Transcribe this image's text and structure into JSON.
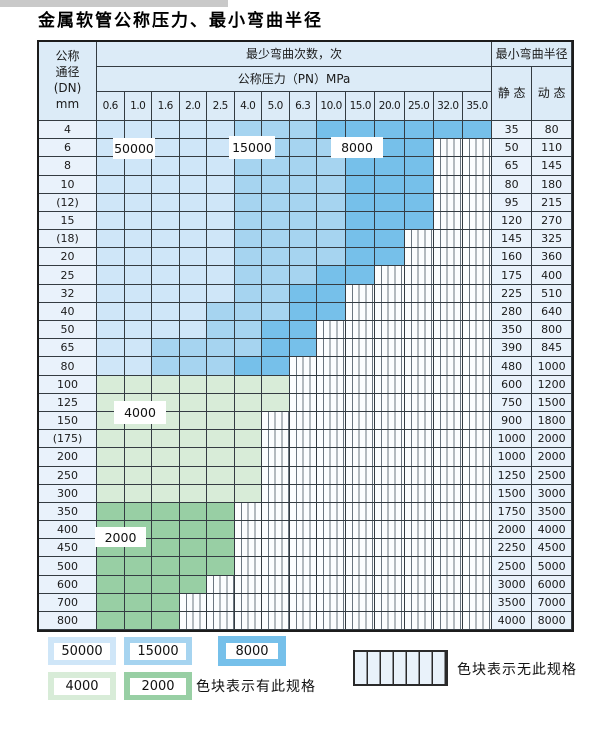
{
  "title": "金属软管公称压力、最小弯曲半径",
  "colors": {
    "cycles_50000": "#cfe6f8",
    "cycles_15000": "#a6d4f0",
    "cycles_8000": "#76c0ea",
    "cycles_4000": "#d8ecd8",
    "cycles_2000": "#98cfa4",
    "header_bg": "#dcebf7",
    "side_col_bg": "#e9f2fb"
  },
  "table": {
    "header": {
      "dn_lines": [
        "公称",
        "通径",
        "(DN)",
        "mm"
      ],
      "bend_cycles": "最少弯曲次数，次",
      "pressure": "公称压力（PN）MPa",
      "bend_radius": "最小弯曲半径",
      "static_label": "静 态",
      "dynamic_label": "动 态",
      "pressure_cols": [
        "0.6",
        "1.0",
        "1.6",
        "2.0",
        "2.5",
        "4.0",
        "5.0",
        "6.3",
        "10.0",
        "15.0",
        "20.0",
        "25.0",
        "32.0",
        "35.0"
      ]
    },
    "zone_legend_codes": {
      "L": "50000",
      "M": "15000",
      "D": "8000",
      "G": "4000",
      "H": "2000",
      "E": "none"
    },
    "zone_labels": [
      "50000",
      "15000",
      "8000",
      "4000",
      "2000"
    ],
    "rows": [
      {
        "dn": "4",
        "zones": [
          "L",
          "L",
          "L",
          "L",
          "L",
          "M",
          "M",
          "M",
          "D",
          "D",
          "D",
          "D",
          "D",
          "D"
        ],
        "static": "35",
        "dynamic": "80"
      },
      {
        "dn": "6",
        "zones": [
          "L",
          "L",
          "L",
          "L",
          "L",
          "M",
          "M",
          "M",
          "M",
          "D",
          "D",
          "D",
          "E",
          "E"
        ],
        "static": "50",
        "dynamic": "110"
      },
      {
        "dn": "8",
        "zones": [
          "L",
          "L",
          "L",
          "L",
          "L",
          "M",
          "M",
          "M",
          "M",
          "D",
          "D",
          "D",
          "E",
          "E"
        ],
        "static": "65",
        "dynamic": "145"
      },
      {
        "dn": "10",
        "zones": [
          "L",
          "L",
          "L",
          "L",
          "L",
          "M",
          "M",
          "M",
          "M",
          "D",
          "D",
          "D",
          "E",
          "E"
        ],
        "static": "80",
        "dynamic": "180"
      },
      {
        "dn": "(12)",
        "zones": [
          "L",
          "L",
          "L",
          "L",
          "L",
          "M",
          "M",
          "M",
          "M",
          "D",
          "D",
          "D",
          "E",
          "E"
        ],
        "static": "95",
        "dynamic": "215"
      },
      {
        "dn": "15",
        "zones": [
          "L",
          "L",
          "L",
          "L",
          "L",
          "M",
          "M",
          "M",
          "M",
          "D",
          "D",
          "D",
          "E",
          "E"
        ],
        "static": "120",
        "dynamic": "270"
      },
      {
        "dn": "(18)",
        "zones": [
          "L",
          "L",
          "L",
          "L",
          "L",
          "M",
          "M",
          "M",
          "M",
          "D",
          "D",
          "E",
          "E",
          "E"
        ],
        "static": "145",
        "dynamic": "325"
      },
      {
        "dn": "20",
        "zones": [
          "L",
          "L",
          "L",
          "L",
          "L",
          "M",
          "M",
          "M",
          "M",
          "D",
          "D",
          "E",
          "E",
          "E"
        ],
        "static": "160",
        "dynamic": "360"
      },
      {
        "dn": "25",
        "zones": [
          "L",
          "L",
          "L",
          "L",
          "L",
          "M",
          "M",
          "M",
          "D",
          "D",
          "E",
          "E",
          "E",
          "E"
        ],
        "static": "175",
        "dynamic": "400"
      },
      {
        "dn": "32",
        "zones": [
          "L",
          "L",
          "L",
          "L",
          "L",
          "M",
          "M",
          "D",
          "D",
          "E",
          "E",
          "E",
          "E",
          "E"
        ],
        "static": "225",
        "dynamic": "510"
      },
      {
        "dn": "40",
        "zones": [
          "L",
          "L",
          "L",
          "L",
          "M",
          "M",
          "M",
          "D",
          "D",
          "E",
          "E",
          "E",
          "E",
          "E"
        ],
        "static": "280",
        "dynamic": "640"
      },
      {
        "dn": "50",
        "zones": [
          "L",
          "L",
          "L",
          "L",
          "M",
          "M",
          "D",
          "D",
          "E",
          "E",
          "E",
          "E",
          "E",
          "E"
        ],
        "static": "350",
        "dynamic": "800"
      },
      {
        "dn": "65",
        "zones": [
          "L",
          "L",
          "M",
          "M",
          "M",
          "M",
          "D",
          "D",
          "E",
          "E",
          "E",
          "E",
          "E",
          "E"
        ],
        "static": "390",
        "dynamic": "845"
      },
      {
        "dn": "80",
        "zones": [
          "L",
          "L",
          "M",
          "M",
          "M",
          "D",
          "D",
          "E",
          "E",
          "E",
          "E",
          "E",
          "E",
          "E"
        ],
        "static": "480",
        "dynamic": "1000"
      },
      {
        "dn": "100",
        "zones": [
          "G",
          "G",
          "G",
          "G",
          "G",
          "G",
          "G",
          "E",
          "E",
          "E",
          "E",
          "E",
          "E",
          "E"
        ],
        "static": "600",
        "dynamic": "1200"
      },
      {
        "dn": "125",
        "zones": [
          "G",
          "G",
          "G",
          "G",
          "G",
          "G",
          "G",
          "E",
          "E",
          "E",
          "E",
          "E",
          "E",
          "E"
        ],
        "static": "750",
        "dynamic": "1500"
      },
      {
        "dn": "150",
        "zones": [
          "G",
          "G",
          "G",
          "G",
          "G",
          "G",
          "E",
          "E",
          "E",
          "E",
          "E",
          "E",
          "E",
          "E"
        ],
        "static": "900",
        "dynamic": "1800"
      },
      {
        "dn": "(175)",
        "zones": [
          "G",
          "G",
          "G",
          "G",
          "G",
          "G",
          "E",
          "E",
          "E",
          "E",
          "E",
          "E",
          "E",
          "E"
        ],
        "static": "1000",
        "dynamic": "2000"
      },
      {
        "dn": "200",
        "zones": [
          "G",
          "G",
          "G",
          "G",
          "G",
          "G",
          "E",
          "E",
          "E",
          "E",
          "E",
          "E",
          "E",
          "E"
        ],
        "static": "1000",
        "dynamic": "2000"
      },
      {
        "dn": "250",
        "zones": [
          "G",
          "G",
          "G",
          "G",
          "G",
          "G",
          "E",
          "E",
          "E",
          "E",
          "E",
          "E",
          "E",
          "E"
        ],
        "static": "1250",
        "dynamic": "2500"
      },
      {
        "dn": "300",
        "zones": [
          "G",
          "G",
          "G",
          "G",
          "G",
          "G",
          "E",
          "E",
          "E",
          "E",
          "E",
          "E",
          "E",
          "E"
        ],
        "static": "1500",
        "dynamic": "3000"
      },
      {
        "dn": "350",
        "zones": [
          "H",
          "H",
          "H",
          "H",
          "H",
          "E",
          "E",
          "E",
          "E",
          "E",
          "E",
          "E",
          "E",
          "E"
        ],
        "static": "1750",
        "dynamic": "3500"
      },
      {
        "dn": "400",
        "zones": [
          "H",
          "H",
          "H",
          "H",
          "H",
          "E",
          "E",
          "E",
          "E",
          "E",
          "E",
          "E",
          "E",
          "E"
        ],
        "static": "2000",
        "dynamic": "4000"
      },
      {
        "dn": "450",
        "zones": [
          "H",
          "H",
          "H",
          "H",
          "H",
          "E",
          "E",
          "E",
          "E",
          "E",
          "E",
          "E",
          "E",
          "E"
        ],
        "static": "2250",
        "dynamic": "4500"
      },
      {
        "dn": "500",
        "zones": [
          "H",
          "H",
          "H",
          "H",
          "H",
          "E",
          "E",
          "E",
          "E",
          "E",
          "E",
          "E",
          "E",
          "E"
        ],
        "static": "2500",
        "dynamic": "5000"
      },
      {
        "dn": "600",
        "zones": [
          "H",
          "H",
          "H",
          "H",
          "E",
          "E",
          "E",
          "E",
          "E",
          "E",
          "E",
          "E",
          "E",
          "E"
        ],
        "static": "3000",
        "dynamic": "6000"
      },
      {
        "dn": "700",
        "zones": [
          "H",
          "H",
          "H",
          "E",
          "E",
          "E",
          "E",
          "E",
          "E",
          "E",
          "E",
          "E",
          "E",
          "E"
        ],
        "static": "3500",
        "dynamic": "7000"
      },
      {
        "dn": "800",
        "zones": [
          "H",
          "H",
          "H",
          "E",
          "E",
          "E",
          "E",
          "E",
          "E",
          "E",
          "E",
          "E",
          "E",
          "E"
        ],
        "static": "4000",
        "dynamic": "8000"
      }
    ]
  },
  "legend": {
    "boxes": [
      {
        "label": "50000",
        "color": "#cfe6f8"
      },
      {
        "label": "15000",
        "color": "#a6d4f0"
      },
      {
        "label": "8000",
        "color": "#76c0ea"
      },
      {
        "label": "4000",
        "color": "#d8ecd8"
      },
      {
        "label": "2000",
        "color": "#98cfa4"
      }
    ],
    "have_text": "色块表示有此规格",
    "none_text": "色块表示无此规格"
  }
}
